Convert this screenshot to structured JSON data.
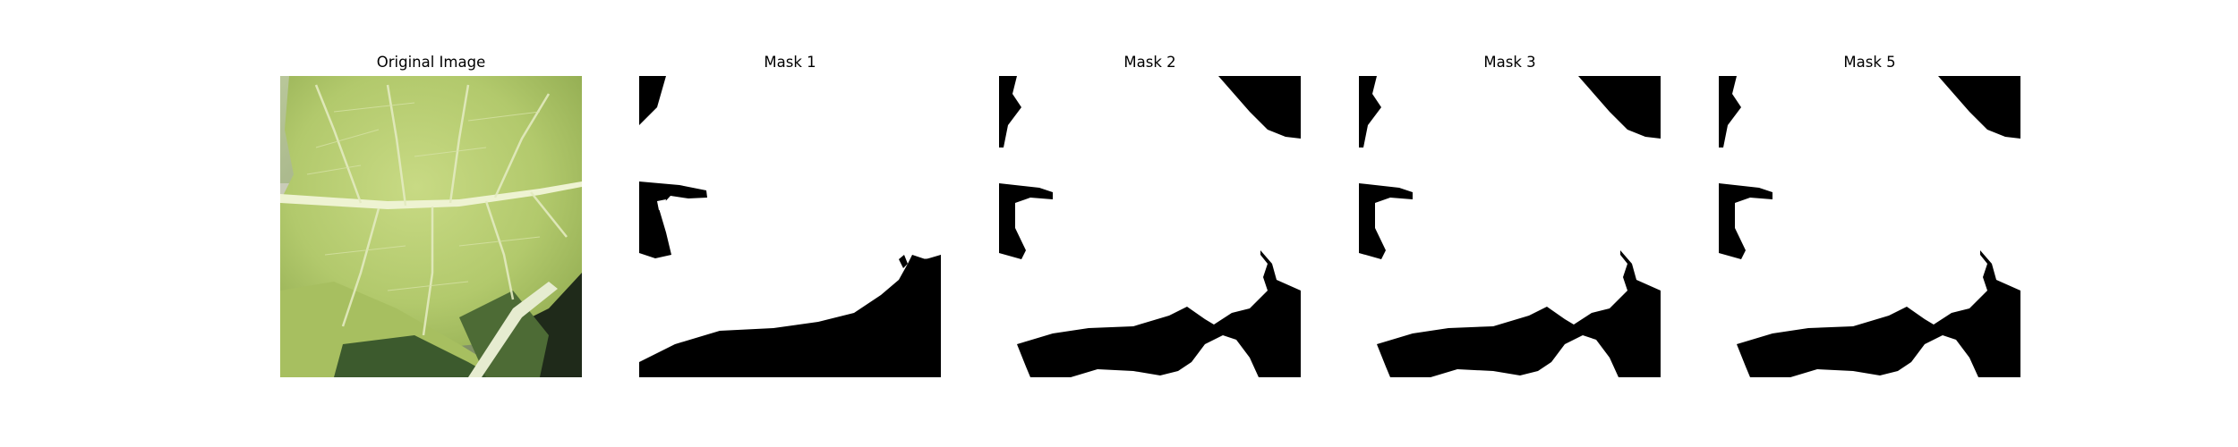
{
  "figure": {
    "panels": [
      {
        "title": "Original Image"
      },
      {
        "title": "Mask 1"
      },
      {
        "title": "Mask 2"
      },
      {
        "title": "Mask 3"
      },
      {
        "title": "Mask 5"
      }
    ]
  },
  "colors": {
    "mask_background": "#000000",
    "mask_foreground": "#ffffff",
    "leaf_main": "#b9cf75",
    "leaf_shadow": "#3c5a2d",
    "vein": "#e8efc8"
  }
}
